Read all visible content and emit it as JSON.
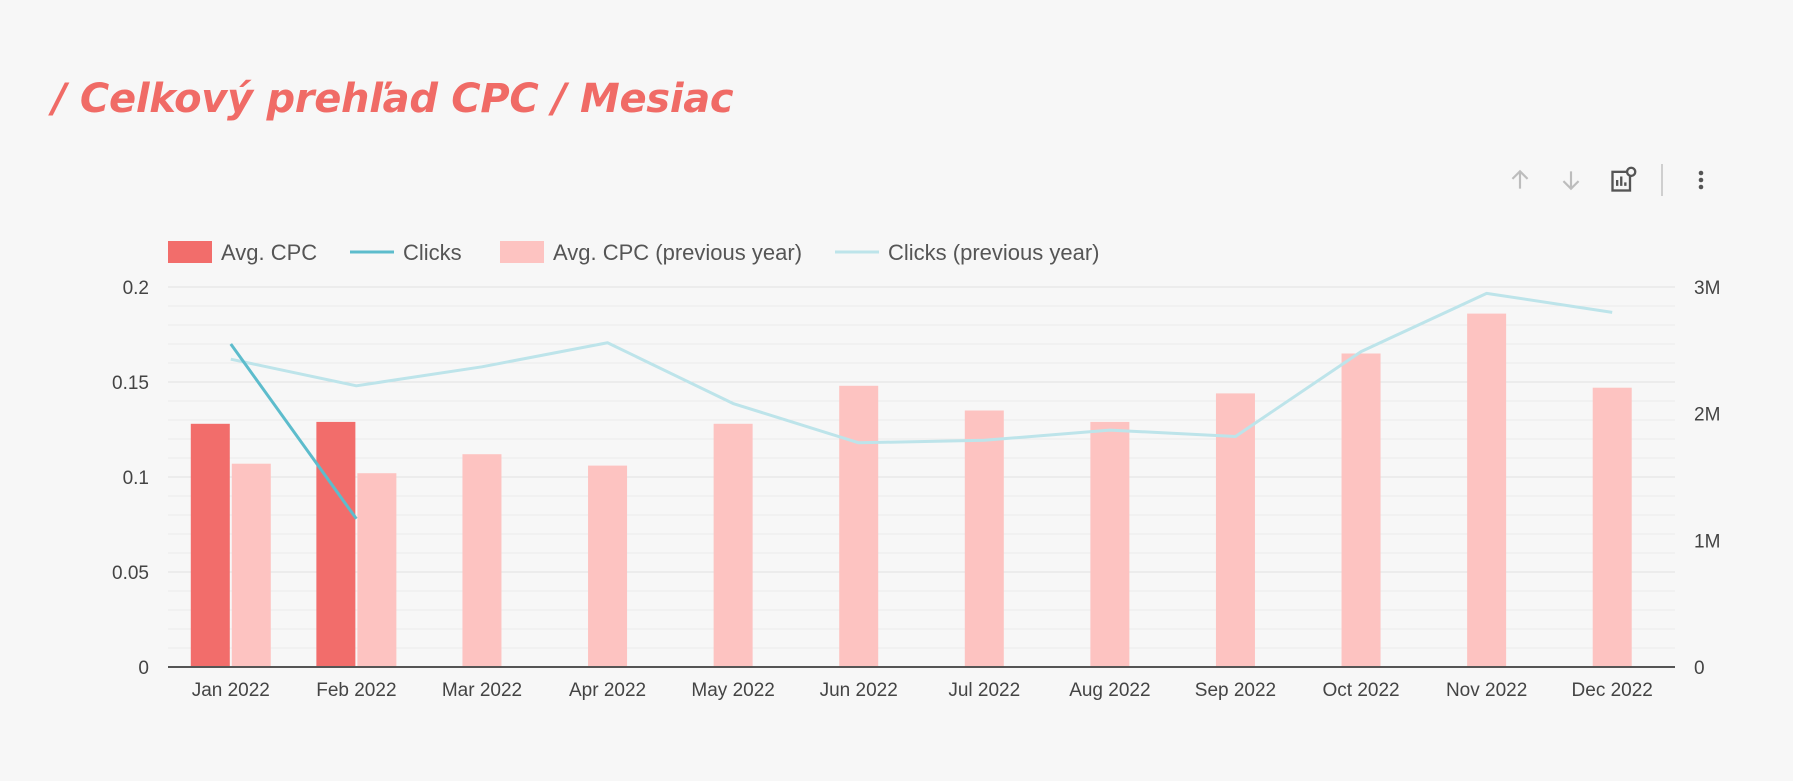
{
  "title": "/ Celkový prehľad CPC / Mesiac",
  "toolbar": {
    "icons": [
      "arrow-up-icon",
      "arrow-down-icon",
      "chart-settings-icon",
      "more-vert-icon"
    ]
  },
  "colors": {
    "avg_cpc": "#f26d6b",
    "clicks": "#5dbccc",
    "avg_cpc_prev": "#fdc3c1",
    "clicks_prev": "#bde4ea"
  },
  "chart_data": {
    "type": "bar",
    "categories": [
      "Jan 2022",
      "Feb 2022",
      "Mar 2022",
      "Apr 2022",
      "May 2022",
      "Jun 2022",
      "Jul 2022",
      "Aug 2022",
      "Sep 2022",
      "Oct 2022",
      "Nov 2022",
      "Dec 2022"
    ],
    "series": [
      {
        "name": "Avg. CPC",
        "type": "bar",
        "axis": "left",
        "values": [
          0.128,
          0.129,
          null,
          null,
          null,
          null,
          null,
          null,
          null,
          null,
          null,
          null
        ]
      },
      {
        "name": "Clicks",
        "type": "line",
        "axis": "right",
        "values": [
          2550000,
          1170000,
          null,
          null,
          null,
          null,
          null,
          null,
          null,
          null,
          null,
          null
        ]
      },
      {
        "name": "Avg. CPC (previous year)",
        "type": "bar",
        "axis": "left",
        "values": [
          0.107,
          0.102,
          0.112,
          0.106,
          0.128,
          0.148,
          0.135,
          0.129,
          0.144,
          0.165,
          0.186,
          0.147
        ]
      },
      {
        "name": "Clicks (previous year)",
        "type": "line",
        "axis": "right",
        "values": [
          2430000,
          2220000,
          2370000,
          2560000,
          2080000,
          1770000,
          1790000,
          1870000,
          1820000,
          2490000,
          2950000,
          2800000
        ]
      }
    ],
    "y_left": {
      "ticks": [
        "0",
        "0.05",
        "0.1",
        "0.15",
        "0.2"
      ],
      "range": [
        0,
        0.2
      ]
    },
    "y_right": {
      "ticks": [
        "0",
        "1M",
        "2M",
        "3M"
      ],
      "range": [
        0,
        3000000
      ]
    },
    "legend_position": "top-left",
    "grid": true
  }
}
